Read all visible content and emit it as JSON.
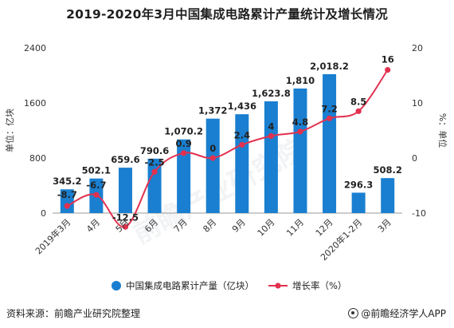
{
  "title": "2019-2020年3月中国集成电路累计产量统计及增长情况",
  "footer": {
    "source": "资料来源：前瞻产业研究院整理",
    "brand": "@前瞻经济学人APP"
  },
  "watermark": "前瞻产业研究院",
  "colors": {
    "bar": "#1a7fd0",
    "line": "#e2314f",
    "axis": "#999999",
    "text": "#333333"
  },
  "chart_data": {
    "type": "bar",
    "title": "2019-2020年3月中国集成电路累计产量统计及增长情况",
    "categories": [
      "2019年3月",
      "4月",
      "5月",
      "6月",
      "7月",
      "8月",
      "9月",
      "10月",
      "11月",
      "12月",
      "2020年1-2月",
      "3月"
    ],
    "y_left": {
      "label": "单位：亿块",
      "range": [
        0,
        2400
      ],
      "ticks": [
        0,
        800,
        1600,
        2400
      ]
    },
    "y_right": {
      "label": "%：单位",
      "range": [
        -10,
        20
      ],
      "ticks": [
        -10,
        0,
        10,
        20
      ]
    },
    "series": [
      {
        "name": "中国集成电路累计产量（亿块）",
        "type": "bar",
        "axis": "left",
        "values": [
          345.2,
          502.1,
          659.6,
          790.6,
          1070.2,
          1372,
          1436,
          1623.8,
          1810,
          2018.2,
          296.3,
          508.2
        ],
        "labels": [
          "345.2",
          "502.1",
          "659.6",
          "790.6",
          "1,070.2",
          "1,372",
          "1,436",
          "1,623.8",
          "1,810",
          "2,018.2",
          "296.3",
          "508.2"
        ]
      },
      {
        "name": "增长率（%）",
        "type": "line",
        "axis": "right",
        "values": [
          -8.7,
          -6.7,
          -12.5,
          -2.5,
          0.9,
          0,
          2.4,
          4,
          4.8,
          7.2,
          8.5,
          16
        ],
        "labels": [
          "-8.7",
          "-6.7",
          "-12.5",
          "-2.5",
          "0.9",
          "0",
          "2.4",
          "4",
          "4.8",
          "7.2",
          "8.5",
          "16"
        ]
      }
    ],
    "legend": "bottom",
    "grid": false
  }
}
